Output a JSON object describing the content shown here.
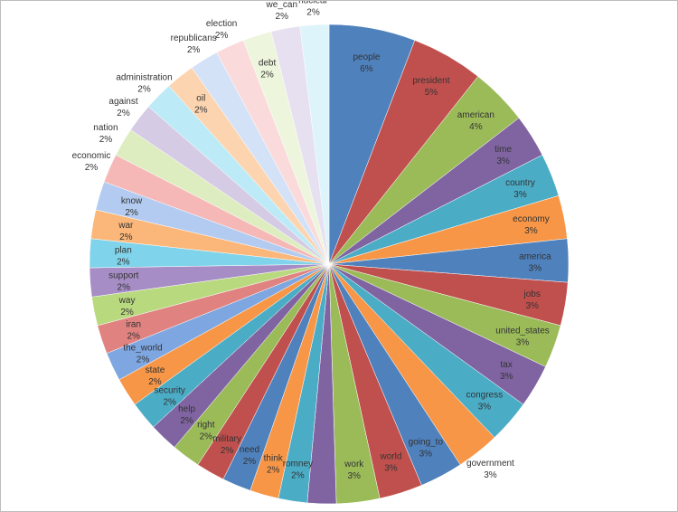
{
  "chart_data": {
    "type": "pie",
    "title": "",
    "start": "top",
    "direction": "clockwise",
    "slices": [
      {
        "label": "people",
        "value": 6,
        "pct": "6%",
        "color": "#4F81BD"
      },
      {
        "label": "president",
        "value": 5,
        "pct": "5%",
        "color": "#C0504D"
      },
      {
        "label": "american",
        "value": 4,
        "pct": "4%",
        "color": "#9BBB59"
      },
      {
        "label": "time",
        "value": 3,
        "pct": "3%",
        "color": "#8064A2"
      },
      {
        "label": "country",
        "value": 3,
        "pct": "3%",
        "color": "#4BACC6"
      },
      {
        "label": "economy",
        "value": 3,
        "pct": "3%",
        "color": "#F79646"
      },
      {
        "label": "america",
        "value": 3,
        "pct": "3%",
        "color": "#4F81BD"
      },
      {
        "label": "jobs",
        "value": 3,
        "pct": "3%",
        "color": "#C0504D"
      },
      {
        "label": "united_states",
        "value": 3,
        "pct": "3%",
        "color": "#9BBB59"
      },
      {
        "label": "tax",
        "value": 3,
        "pct": "3%",
        "color": "#8064A2"
      },
      {
        "label": "congress",
        "value": 3,
        "pct": "3%",
        "color": "#4BACC6"
      },
      {
        "label": "government",
        "value": 3,
        "pct": "3%",
        "color": "#F79646"
      },
      {
        "label": "going_to",
        "value": 3,
        "pct": "3%",
        "color": "#4F81BD"
      },
      {
        "label": "world",
        "value": 3,
        "pct": "3%",
        "color": "#C0504D"
      },
      {
        "label": "work",
        "value": 3,
        "pct": "3%",
        "color": "#9BBB59"
      },
      {
        "label": "americans",
        "value": 2,
        "pct": "2%",
        "color": "#8064A2"
      },
      {
        "label": "romney",
        "value": 2,
        "pct": "2%",
        "color": "#4BACC6"
      },
      {
        "label": "think",
        "value": 2,
        "pct": "2%",
        "color": "#F79646"
      },
      {
        "label": "need",
        "value": 2,
        "pct": "2%",
        "color": "#4F81BD"
      },
      {
        "label": "military",
        "value": 2,
        "pct": "2%",
        "color": "#C0504D"
      },
      {
        "label": "right",
        "value": 2,
        "pct": "2%",
        "color": "#9BBB59"
      },
      {
        "label": "help",
        "value": 2,
        "pct": "2%",
        "color": "#8064A2"
      },
      {
        "label": "security",
        "value": 2,
        "pct": "2%",
        "color": "#4BACC6"
      },
      {
        "label": "state",
        "value": 2,
        "pct": "2%",
        "color": "#F79646"
      },
      {
        "label": "the_world",
        "value": 2,
        "pct": "2%",
        "color": "#7EA6E0"
      },
      {
        "label": "iran",
        "value": 2,
        "pct": "2%",
        "color": "#E08280"
      },
      {
        "label": "way",
        "value": 2,
        "pct": "2%",
        "color": "#B9D97F"
      },
      {
        "label": "support",
        "value": 2,
        "pct": "2%",
        "color": "#A68DC6"
      },
      {
        "label": "plan",
        "value": 2,
        "pct": "2%",
        "color": "#7FD3EA"
      },
      {
        "label": "war",
        "value": 2,
        "pct": "2%",
        "color": "#FBB77A"
      },
      {
        "label": "know",
        "value": 2,
        "pct": "2%",
        "color": "#B3CBF0"
      },
      {
        "label": "economic",
        "value": 2,
        "pct": "2%",
        "color": "#F5B8B6"
      },
      {
        "label": "nation",
        "value": 2,
        "pct": "2%",
        "color": "#DDEDC0"
      },
      {
        "label": "against",
        "value": 2,
        "pct": "2%",
        "color": "#D5CBE4"
      },
      {
        "label": "administration",
        "value": 2,
        "pct": "2%",
        "color": "#BDEAF7"
      },
      {
        "label": "oil",
        "value": 2,
        "pct": "2%",
        "color": "#FDD4B0"
      },
      {
        "label": "republicans",
        "value": 2,
        "pct": "2%",
        "color": "#D4E2F8"
      },
      {
        "label": "election",
        "value": 2,
        "pct": "2%",
        "color": "#FADADA"
      },
      {
        "label": "debt",
        "value": 2,
        "pct": "2%",
        "color": "#EDF6DC"
      },
      {
        "label": "we_can",
        "value": 2,
        "pct": "2%",
        "color": "#E6E0F0"
      },
      {
        "label": "nuclear",
        "value": 2,
        "pct": "2%",
        "color": "#DDF4FB"
      }
    ]
  }
}
